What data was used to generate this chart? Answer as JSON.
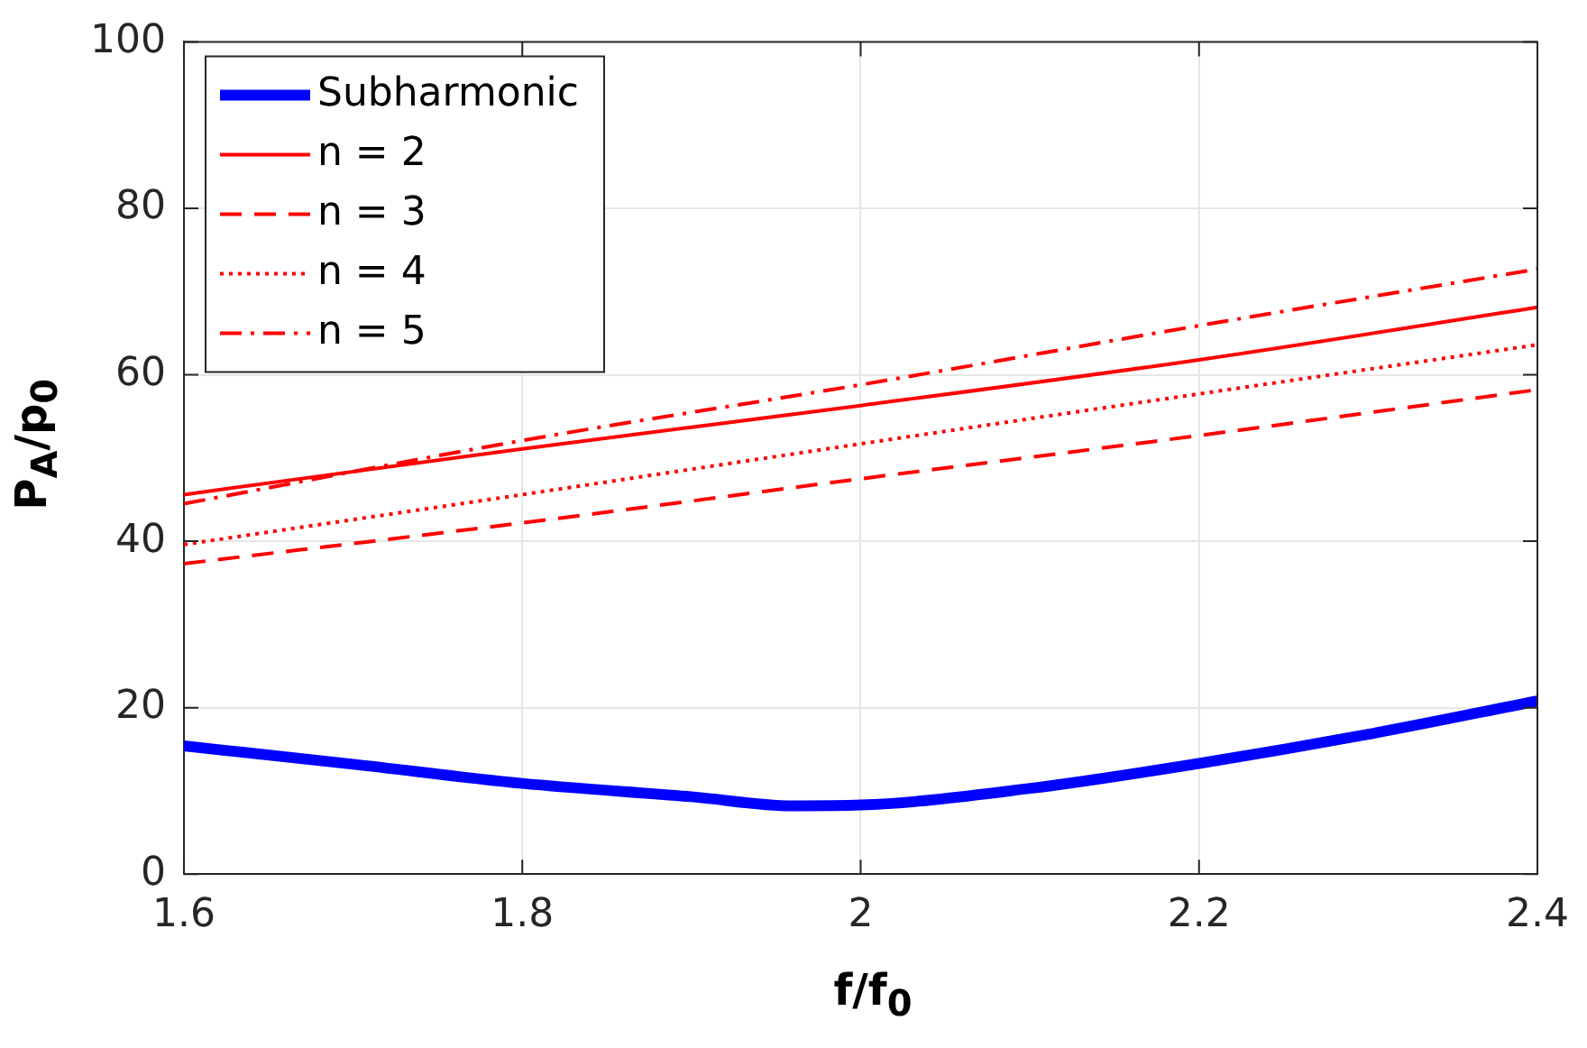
{
  "chart_data": {
    "type": "line",
    "xlabel": "f/f$_{0}$",
    "ylabel": "P$_{A}$/p$_{0}$",
    "x": [
      1.6,
      1.7,
      1.8,
      1.9,
      1.96,
      2.0,
      2.1,
      2.2,
      2.3,
      2.4
    ],
    "series": [
      {
        "name": "Subharmonic",
        "color": "#0000ff",
        "line_style": "solid",
        "values": [
          15.4,
          13.2,
          10.9,
          9.3,
          8.2,
          8.3,
          10.3,
          13.3,
          16.8,
          20.8
        ]
      },
      {
        "name": "n = 2",
        "color": "#ff0000",
        "line_style": "solid",
        "x": [
          1.6,
          1.8,
          2.0,
          2.2,
          2.4
        ],
        "values": [
          45.6,
          51.1,
          56.3,
          61.8,
          68.1
        ]
      },
      {
        "name": "n = 3",
        "color": "#ff0000",
        "line_style": "dashed",
        "x": [
          1.6,
          1.8,
          2.0,
          2.2,
          2.4
        ],
        "values": [
          37.3,
          42.2,
          47.5,
          52.7,
          58.2
        ]
      },
      {
        "name": "n = 4",
        "color": "#ff0000",
        "line_style": "dotted",
        "x": [
          1.6,
          1.8,
          2.0,
          2.2,
          2.4
        ],
        "values": [
          39.6,
          45.6,
          51.7,
          57.7,
          63.6
        ]
      },
      {
        "name": "n = 5",
        "color": "#ff0000",
        "line_style": "dashdot",
        "x": [
          1.6,
          1.8,
          2.0,
          2.2,
          2.4
        ],
        "values": [
          44.5,
          52.1,
          58.8,
          65.9,
          72.7
        ]
      }
    ],
    "xlim": [
      1.6,
      2.4
    ],
    "xticks": [
      1.6,
      1.8,
      2,
      2.2,
      2.4
    ],
    "ylim": [
      0,
      100
    ],
    "yticks": [
      0,
      20,
      40,
      60,
      80,
      100
    ],
    "grid": true,
    "legend": "top left"
  }
}
